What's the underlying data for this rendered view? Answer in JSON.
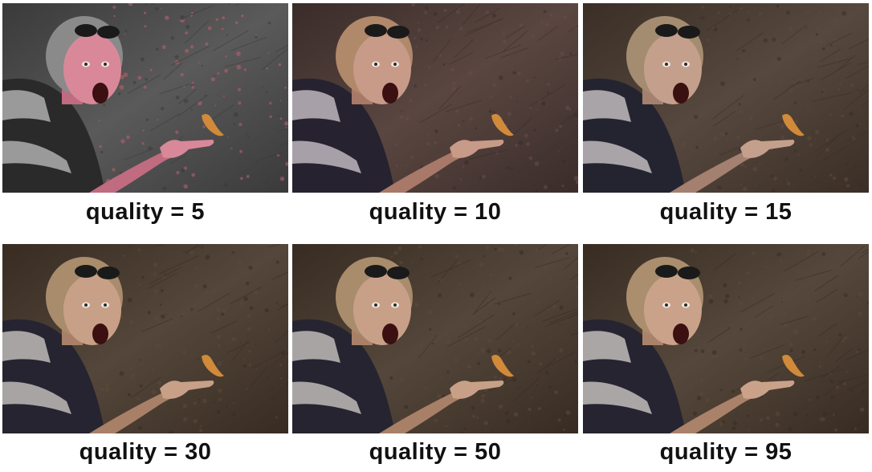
{
  "panels": [
    {
      "caption": "quality = 5",
      "quality": 5,
      "style": "q5"
    },
    {
      "caption": "quality = 10",
      "quality": 10,
      "style": "q10"
    },
    {
      "caption": "quality = 15",
      "quality": 15,
      "style": "q15"
    },
    {
      "caption": "quality = 30",
      "quality": 30,
      "style": "q30"
    },
    {
      "caption": "quality = 50",
      "quality": 50,
      "style": "q50"
    },
    {
      "caption": "quality = 95",
      "quality": 95,
      "style": "q95"
    }
  ]
}
